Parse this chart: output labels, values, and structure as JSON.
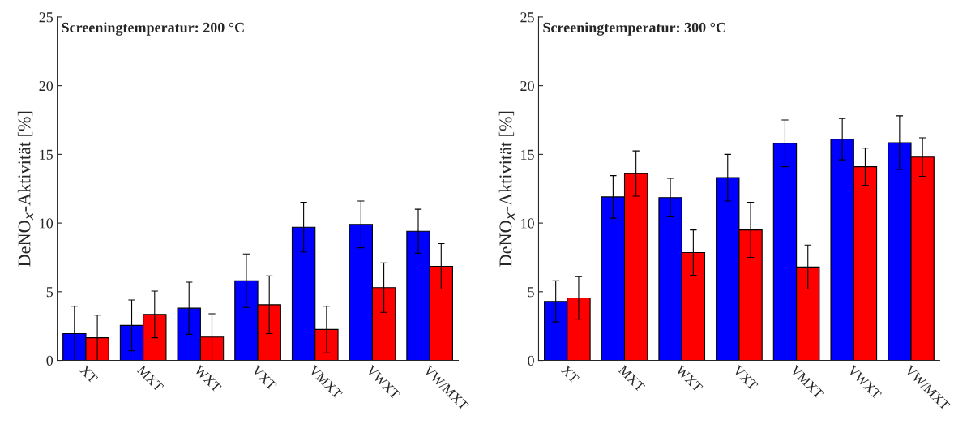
{
  "chart_data": [
    {
      "type": "bar",
      "categories": [
        "XT",
        "MXT",
        "WXT",
        "VXT",
        "VMXT",
        "VWXT",
        "VW/MXT"
      ],
      "ylabel": "DeNO$_{x}$-Aktivität [%]",
      "ylim": [
        0,
        25
      ],
      "yticks": [
        0,
        5,
        10,
        15,
        20,
        25
      ],
      "grid": false,
      "annotations": [
        "Screeningtemperatur: 200 °C"
      ],
      "series": [
        {
          "color": "#0000ff",
          "values": [
            1.95,
            2.55,
            3.8,
            5.8,
            9.7,
            9.9,
            9.4
          ],
          "errors": [
            2.0,
            1.85,
            1.9,
            1.95,
            1.8,
            1.7,
            1.6
          ]
        },
        {
          "color": "#ff0000",
          "values": [
            1.65,
            3.35,
            1.7,
            4.05,
            2.25,
            5.3,
            6.85
          ],
          "errors": [
            1.65,
            1.7,
            1.7,
            2.1,
            1.7,
            1.8,
            1.65
          ]
        }
      ]
    },
    {
      "type": "bar",
      "categories": [
        "XT",
        "MXT",
        "WXT",
        "VXT",
        "VMXT",
        "VWXT",
        "VW/MXT"
      ],
      "ylabel": "DeNO$_{x}$-Aktivität [%]",
      "ylim": [
        0,
        25
      ],
      "yticks": [
        0,
        5,
        10,
        15,
        20,
        25
      ],
      "grid": false,
      "annotations": [
        "Screeningtemperatur: 300 °C"
      ],
      "series": [
        {
          "color": "#0000ff",
          "values": [
            4.3,
            11.9,
            11.85,
            13.3,
            15.8,
            16.1,
            15.85
          ],
          "errors": [
            1.5,
            1.55,
            1.4,
            1.7,
            1.7,
            1.5,
            1.95
          ]
        },
        {
          "color": "#ff0000",
          "values": [
            4.55,
            13.6,
            7.85,
            9.5,
            6.8,
            14.1,
            14.8
          ],
          "errors": [
            1.55,
            1.65,
            1.65,
            2.0,
            1.6,
            1.35,
            1.4
          ]
        }
      ]
    }
  ]
}
